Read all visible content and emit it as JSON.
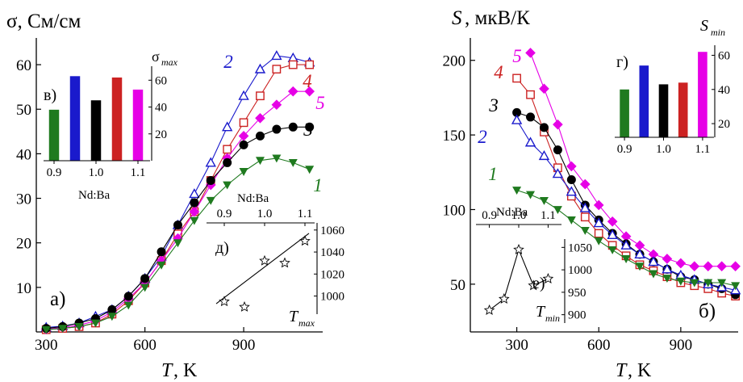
{
  "chart_data": [
    {
      "id": "a",
      "type": "line",
      "panel_label": "а)",
      "ylabel": "σ, См/см",
      "xlabel": "T, K",
      "x_ticks": [
        300,
        600,
        900
      ],
      "y_ticks": [
        10,
        20,
        30,
        40,
        50,
        60
      ],
      "xlim": [
        270,
        1140
      ],
      "ylim": [
        0,
        66
      ],
      "colors": {
        "1": "#1f7a1f",
        "2": "#1a1acc",
        "3": "#000000",
        "4": "#cc2222",
        "5": "#e600e6"
      },
      "series": [
        {
          "name": "2",
          "marker": "triangle-open",
          "x": [
            300,
            350,
            400,
            450,
            500,
            550,
            600,
            650,
            700,
            750,
            800,
            850,
            900,
            950,
            1000,
            1050,
            1100
          ],
          "y": [
            1,
            1.3,
            2,
            3.5,
            5,
            8,
            12,
            17,
            24,
            31,
            38,
            46,
            53,
            59,
            62,
            61.5,
            60.5
          ]
        },
        {
          "name": "4",
          "marker": "square-open",
          "x": [
            300,
            350,
            400,
            450,
            500,
            550,
            600,
            650,
            700,
            750,
            800,
            850,
            900,
            950,
            1000,
            1050,
            1100
          ],
          "y": [
            0.5,
            0.8,
            1.2,
            2,
            4,
            7,
            11,
            16,
            22,
            27,
            34,
            41,
            47,
            53,
            59,
            60,
            60
          ]
        },
        {
          "name": "5",
          "marker": "diamond",
          "x": [
            300,
            350,
            400,
            450,
            500,
            550,
            600,
            650,
            700,
            750,
            800,
            850,
            900,
            950,
            1000,
            1050,
            1100
          ],
          "y": [
            0.6,
            1,
            1.5,
            2.5,
            4.5,
            7.5,
            11,
            16,
            21,
            27,
            33,
            39,
            44,
            48,
            51,
            54,
            54
          ]
        },
        {
          "name": "3",
          "marker": "circle",
          "x": [
            300,
            350,
            400,
            450,
            500,
            550,
            600,
            650,
            700,
            750,
            800,
            850,
            900,
            950,
            1000,
            1050,
            1100
          ],
          "y": [
            0.8,
            1.2,
            2,
            3,
            5,
            8,
            12,
            18,
            24,
            29,
            34,
            38,
            42,
            44,
            45.5,
            46,
            46
          ]
        },
        {
          "name": "1",
          "marker": "triangle-down",
          "x": [
            300,
            350,
            400,
            450,
            500,
            550,
            600,
            650,
            700,
            750,
            800,
            850,
            900,
            950,
            1000,
            1050,
            1100
          ],
          "y": [
            0.5,
            0.8,
            1.2,
            2,
            3.5,
            6,
            10,
            15,
            20,
            25,
            29.5,
            33,
            36,
            38.5,
            39,
            38,
            36.5
          ]
        }
      ],
      "inset_bar": {
        "panel_label": "в)",
        "ylabel": "σ_max",
        "xlabel": "Nd:Ba",
        "x_ticks": [
          "0.9",
          "1.0",
          "1.1"
        ],
        "y_ticks": [
          20,
          40,
          60
        ],
        "ylim": [
          0,
          68
        ],
        "categories": [
          "0.9",
          "0.95",
          "1.0",
          "1.05",
          "1.1"
        ],
        "values": [
          38,
          63,
          45,
          62,
          53
        ],
        "bar_colors": [
          "#1f7a1f",
          "#1a1acc",
          "#000000",
          "#cc2222",
          "#e600e6"
        ]
      },
      "inset_scatter": {
        "panel_label": "д)",
        "xlabel": "Nd:Ba",
        "ylabel": "T_max",
        "x_ticks": [
          "0.9",
          "1.0",
          "1.1"
        ],
        "y_ticks": [
          1000,
          1020,
          1040,
          1060
        ],
        "xlim": [
          0.86,
          1.12
        ],
        "ylim": [
          985,
          1065
        ],
        "x": [
          0.9,
          0.95,
          1.0,
          1.05,
          1.1
        ],
        "y": [
          995,
          990,
          1032,
          1030,
          1050
        ],
        "fit_line": {
          "x": [
            0.88,
            1.11
          ],
          "y": [
            993,
            1057
          ]
        }
      }
    },
    {
      "id": "b",
      "type": "line",
      "panel_label": "б)",
      "ylabel": "S, мкВ/К",
      "xlabel": "T, K",
      "x_ticks": [
        300,
        600,
        900
      ],
      "y_ticks": [
        50,
        100,
        150,
        200
      ],
      "xlim": [
        130,
        1110
      ],
      "ylim": [
        18,
        215
      ],
      "colors": {
        "1": "#1f7a1f",
        "2": "#1a1acc",
        "3": "#000000",
        "4": "#cc2222",
        "5": "#e600e6"
      },
      "series": [
        {
          "name": "5",
          "marker": "diamond",
          "x": [
            350,
            400,
            450,
            500,
            550,
            600,
            650,
            700,
            750,
            800,
            850,
            900,
            950,
            1000,
            1050,
            1100
          ],
          "y": [
            205,
            181,
            157,
            129,
            117,
            103,
            92,
            82,
            76,
            70,
            67,
            64,
            62,
            62,
            62,
            62
          ]
        },
        {
          "name": "4",
          "marker": "square-open",
          "x": [
            300,
            350,
            400,
            450,
            500,
            550,
            600,
            650,
            700,
            750,
            800,
            850,
            900,
            950,
            1000,
            1050,
            1100
          ],
          "y": [
            188,
            177,
            152,
            128,
            109,
            95,
            84,
            76,
            69,
            63,
            59,
            55,
            51,
            49,
            47,
            44,
            42
          ]
        },
        {
          "name": "3",
          "marker": "circle",
          "x": [
            300,
            350,
            400,
            450,
            500,
            550,
            600,
            650,
            700,
            750,
            800,
            850,
            900,
            950,
            1000,
            1050,
            1100
          ],
          "y": [
            165,
            162,
            155,
            140,
            120,
            103,
            93,
            84,
            77,
            70,
            65,
            60,
            55,
            53,
            50,
            47,
            43
          ]
        },
        {
          "name": "2",
          "marker": "triangle-open",
          "x": [
            300,
            350,
            400,
            450,
            500,
            550,
            600,
            650,
            700,
            750,
            800,
            850,
            900,
            950,
            1000,
            1050,
            1100
          ],
          "y": [
            160,
            145,
            136,
            124,
            112,
            101,
            91,
            83,
            76,
            70,
            65,
            60,
            56,
            53,
            50,
            48,
            46
          ]
        },
        {
          "name": "1",
          "marker": "triangle-down",
          "x": [
            300,
            350,
            400,
            450,
            500,
            550,
            600,
            650,
            700,
            750,
            800,
            850,
            900,
            950,
            1000,
            1050,
            1100
          ],
          "y": [
            113,
            110,
            106,
            100,
            93,
            86,
            79,
            73,
            67,
            62,
            57,
            54,
            52,
            51,
            51,
            51,
            49
          ]
        }
      ],
      "inset_bar": {
        "panel_label": "г)",
        "ylabel": "S_min",
        "xlabel": "",
        "x_ticks": [
          "0.9",
          "1.0",
          "1.1"
        ],
        "y_ticks": [
          20,
          40,
          60
        ],
        "ylim": [
          12,
          64
        ],
        "categories": [
          "0.9",
          "0.95",
          "1.0",
          "1.05",
          "1.1"
        ],
        "values": [
          40,
          54,
          43,
          44,
          62
        ],
        "bar_colors": [
          "#1f7a1f",
          "#1a1acc",
          "#000000",
          "#cc2222",
          "#e600e6"
        ]
      },
      "inset_scatter": {
        "panel_label": "е)",
        "xlabel": "Nd:Ba",
        "ylabel": "T_min",
        "x_ticks": [
          "0.9",
          "1.0",
          "1.1"
        ],
        "y_ticks": [
          900,
          950,
          1000,
          1050
        ],
        "xlim": [
          0.86,
          1.14
        ],
        "ylim": [
          885,
          1065
        ],
        "x": [
          0.9,
          0.95,
          1.0,
          1.05,
          1.1
        ],
        "y": [
          910,
          935,
          1045,
          965,
          980
        ],
        "connected": true
      }
    }
  ],
  "labels": {
    "a": {
      "ylabel_main": "σ, См/см",
      "xlabel_t": "T",
      "xlabel_unit": ", K",
      "panel": "а)"
    },
    "b": {
      "ylabel_s": "S",
      "ylabel_unit": ", мкВ/К",
      "xlabel_t": "T",
      "xlabel_unit": ", K",
      "panel": "б)"
    },
    "insets": {
      "v_panel": "в)",
      "v_sigma": "σ",
      "v_sub": "max",
      "v_nd": "Nd:Ba",
      "d_panel": "д)",
      "d_nd": "Nd:Ba",
      "d_t": "T",
      "d_sub": "max",
      "g_panel": "г)",
      "g_s": "S",
      "g_sub": "min",
      "e_panel": "е)",
      "e_nd": "Nd:Ba",
      "e_t": "T",
      "e_sub": "min"
    }
  }
}
